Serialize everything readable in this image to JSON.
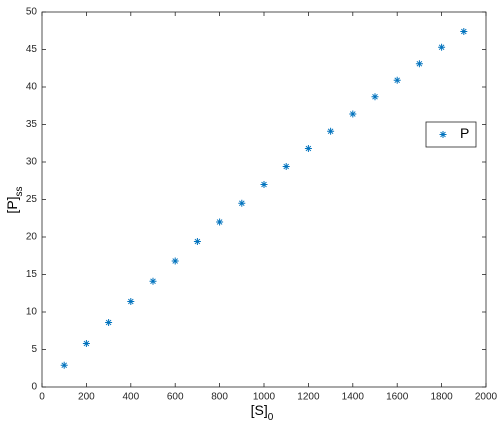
{
  "chart_data": {
    "type": "scatter",
    "xlabel": "[S]",
    "xlabel_sub": "0",
    "ylabel": "[P]",
    "ylabel_sub": "ss",
    "series": [
      {
        "name": "P",
        "color": "#0072bd",
        "marker": "asterisk",
        "x": [
          100,
          200,
          300,
          400,
          500,
          600,
          700,
          800,
          900,
          1000,
          1100,
          1200,
          1300,
          1400,
          1500,
          1600,
          1700,
          1800,
          1900
        ],
        "values": [
          2.9,
          5.8,
          8.6,
          11.4,
          14.1,
          16.8,
          19.4,
          22.0,
          24.5,
          27.0,
          29.4,
          31.8,
          34.1,
          36.4,
          38.7,
          40.9,
          43.1,
          45.3,
          47.4
        ]
      }
    ],
    "xlim": [
      0,
      2000
    ],
    "xticks": [
      0,
      200,
      400,
      600,
      800,
      1000,
      1200,
      1400,
      1600,
      1800,
      2000
    ],
    "ylim": [
      0,
      50
    ],
    "yticks": [
      0,
      5,
      10,
      15,
      20,
      25,
      30,
      35,
      40,
      45,
      50
    ],
    "grid": false,
    "legend": "east"
  }
}
